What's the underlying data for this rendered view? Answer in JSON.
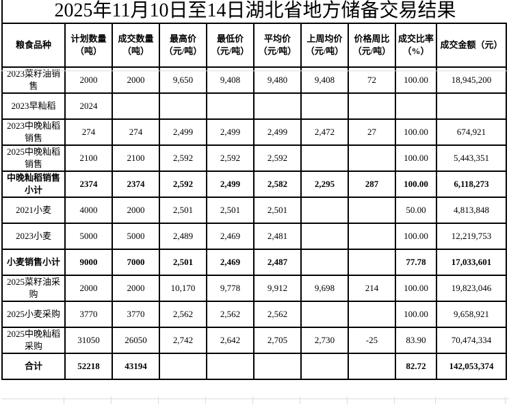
{
  "title": "2025年11月10日至14日湖北省地方储备交易结果",
  "table": {
    "columns": [
      {
        "line1": "粮食品种",
        "line2": ""
      },
      {
        "line1": "计划数量",
        "line2": "（吨）"
      },
      {
        "line1": "成交数量",
        "line2": "（吨）"
      },
      {
        "line1": "最高价",
        "line2": "（元/吨）"
      },
      {
        "line1": "最低价",
        "line2": "（元/吨）"
      },
      {
        "line1": "平均价",
        "line2": "（元/吨）"
      },
      {
        "line1": "上周均价",
        "line2": "（元/吨）"
      },
      {
        "line1": "价格周比",
        "line2": "（元/吨）"
      },
      {
        "line1": "成交比率",
        "line2": "（%）"
      },
      {
        "line1": "成交金额（元）",
        "line2": ""
      }
    ],
    "rows": [
      {
        "name": "2023菜籽油销售",
        "plan": "2000",
        "deal": "2000",
        "high": "9,650",
        "low": "9,408",
        "avg": "9,480",
        "lastweek": "9,408",
        "diff": "72",
        "ratio": "100.00",
        "amount": "18,945,200",
        "bold": false
      },
      {
        "name": "2023早籼稻",
        "plan": "2024",
        "deal": "",
        "high": "",
        "low": "",
        "avg": "",
        "lastweek": "",
        "diff": "",
        "ratio": "",
        "amount": "",
        "bold": false
      },
      {
        "name": "2023中晚籼稻销售",
        "plan": "274",
        "deal": "274",
        "high": "2,499",
        "low": "2,499",
        "avg": "2,499",
        "lastweek": "2,472",
        "diff": "27",
        "ratio": "100.00",
        "amount": "674,921",
        "bold": false
      },
      {
        "name": "2025中晚籼稻销售",
        "plan": "2100",
        "deal": "2100",
        "high": "2,592",
        "low": "2,592",
        "avg": "2,592",
        "lastweek": "",
        "diff": "",
        "ratio": "100.00",
        "amount": "5,443,351",
        "bold": false
      },
      {
        "name": "中晚籼稻销售小计",
        "plan": "2374",
        "deal": "2374",
        "high": "2,592",
        "low": "2,499",
        "avg": "2,582",
        "lastweek": "2,295",
        "diff": "287",
        "ratio": "100.00",
        "amount": "6,118,273",
        "bold": true
      },
      {
        "name": "2021小麦",
        "plan": "4000",
        "deal": "2000",
        "high": "2,501",
        "low": "2,501",
        "avg": "2,501",
        "lastweek": "",
        "diff": "",
        "ratio": "50.00",
        "amount": "4,813,848",
        "bold": false
      },
      {
        "name": "2023小麦",
        "plan": "5000",
        "deal": "5000",
        "high": "2,489",
        "low": "2,469",
        "avg": "2,481",
        "lastweek": "",
        "diff": "",
        "ratio": "100.00",
        "amount": "12,219,753",
        "bold": false
      },
      {
        "name": "小麦销售小计",
        "plan": "9000",
        "deal": "7000",
        "high": "2,501",
        "low": "2,469",
        "avg": "2,487",
        "lastweek": "",
        "diff": "",
        "ratio": "77.78",
        "amount": "17,033,601",
        "bold": true
      },
      {
        "name": "2025菜籽油采购",
        "plan": "2000",
        "deal": "2000",
        "high": "10,170",
        "low": "9,778",
        "avg": "9,912",
        "lastweek": "9,698",
        "diff": "214",
        "ratio": "100.00",
        "amount": "19,823,046",
        "bold": false
      },
      {
        "name": "2025小麦采购",
        "plan": "3770",
        "deal": "3770",
        "high": "2,562",
        "low": "2,562",
        "avg": "2,562",
        "lastweek": "",
        "diff": "",
        "ratio": "100.00",
        "amount": "9,658,921",
        "bold": false
      },
      {
        "name": "2025中晚籼稻采购",
        "plan": "31050",
        "deal": "26050",
        "high": "2,742",
        "low": "2,642",
        "avg": "2,705",
        "lastweek": "2,730",
        "diff": "-25",
        "ratio": "83.90",
        "amount": "70,474,334",
        "bold": false
      },
      {
        "name": "合计",
        "plan": "52218",
        "deal": "43194",
        "high": "",
        "low": "",
        "avg": "",
        "lastweek": "",
        "diff": "",
        "ratio": "82.72",
        "amount": "142,053,374",
        "bold": true
      }
    ]
  }
}
